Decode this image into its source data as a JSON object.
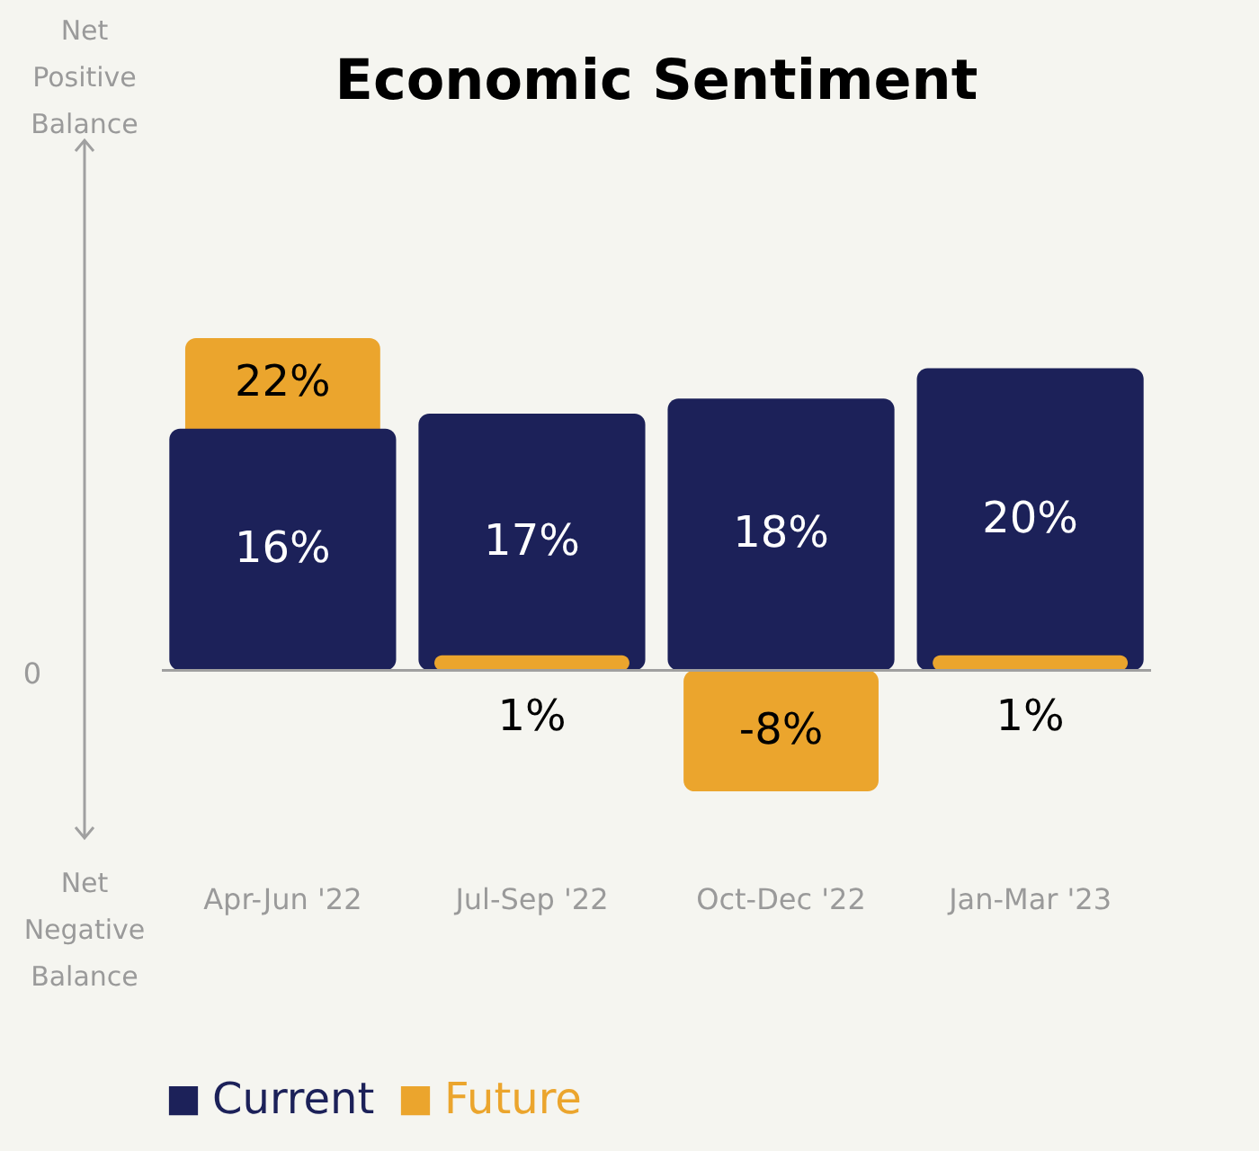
{
  "chart_data": {
    "type": "bar",
    "title": "Economic Sentiment",
    "categories": [
      "Apr-Jun '22",
      "Jul-Sep '22",
      "Oct-Dec '22",
      "Jan-Mar '23"
    ],
    "series": [
      {
        "name": "Future",
        "color": "#eba52d",
        "values": [
          22,
          1,
          -8,
          1
        ],
        "value_labels": [
          "22%",
          "1%",
          "-8%",
          "1%"
        ]
      },
      {
        "name": "Current",
        "color": "#1c2159",
        "values": [
          16,
          17,
          18,
          20
        ],
        "value_labels": [
          "16%",
          "17%",
          "18%",
          "20%"
        ]
      }
    ],
    "ref_lines": [
      {
        "axis": "y",
        "value": 0,
        "color": "#a0a0a0"
      }
    ],
    "annotations": [
      "Net Positive Balance",
      "Net Negative Balance",
      "0"
    ],
    "legend": "bottom"
  }
}
